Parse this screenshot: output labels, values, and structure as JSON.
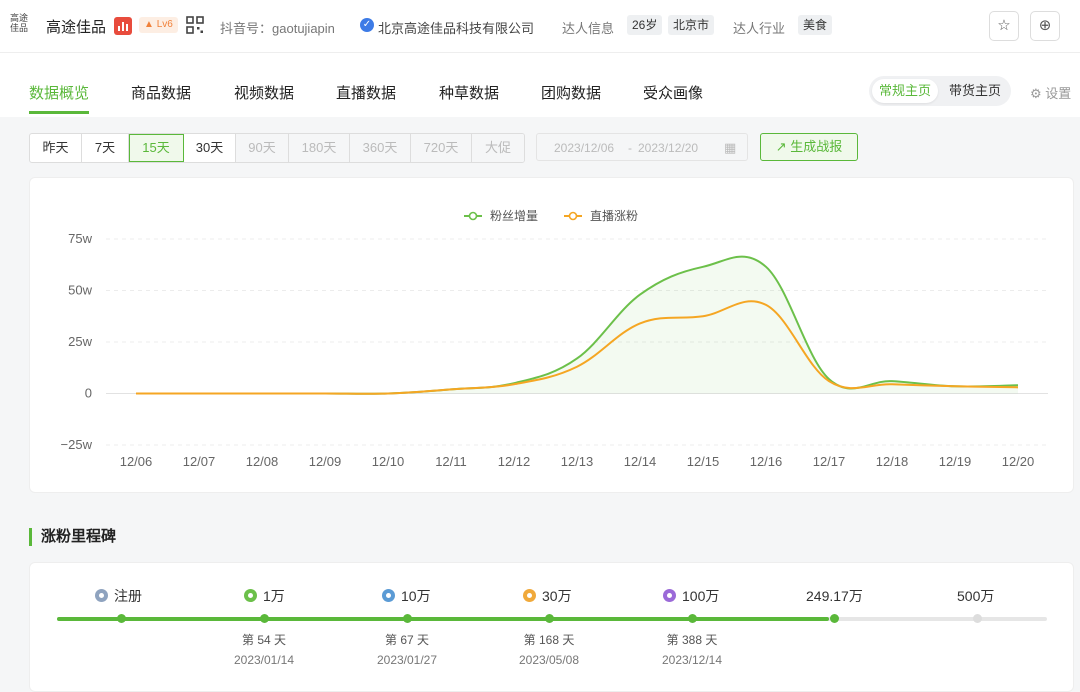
{
  "header": {
    "logo_text": "高途佳品",
    "account_name": "高途佳品",
    "level": "Lv6",
    "douyin_id_label": "抖音号：",
    "douyin_id": "gaotujiapin",
    "company": "北京高途佳品科技有限公司",
    "info_label": "达人信息",
    "age": "26岁",
    "city": "北京市",
    "industry_label": "达人行业",
    "industry": "美食"
  },
  "nav": {
    "tabs": [
      "数据概览",
      "商品数据",
      "视频数据",
      "直播数据",
      "种草数据",
      "团购数据",
      "受众画像"
    ],
    "active_tab": "数据概览",
    "toggle_on": "常规主页",
    "toggle_off": "带货主页",
    "settings": "设置"
  },
  "filters": {
    "ranges": [
      "昨天",
      "7天",
      "15天",
      "30天",
      "90天",
      "180天",
      "360天",
      "720天",
      "大促"
    ],
    "active_range": "15天",
    "date_start": "2023/12/06",
    "date_end": "2023/12/20",
    "date_sep": "-",
    "generate_report": "生成战报"
  },
  "chart_data": {
    "type": "line",
    "legend_position": "top",
    "grid": true,
    "categories": [
      "12/06",
      "12/07",
      "12/08",
      "12/09",
      "12/10",
      "12/11",
      "12/12",
      "12/13",
      "12/14",
      "12/15",
      "12/16",
      "12/17",
      "12/18",
      "12/19",
      "12/20"
    ],
    "series": [
      {
        "name": "粉丝增量",
        "color": "#6cc04a",
        "fill": true,
        "values": [
          0,
          0,
          0,
          0,
          0,
          2,
          5,
          17,
          48,
          61.5,
          61.5,
          7,
          6,
          3.5,
          4
        ]
      },
      {
        "name": "直播涨粉",
        "color": "#f5a623",
        "fill": false,
        "values": [
          0,
          0,
          0,
          0,
          0,
          2,
          4.5,
          13,
          34,
          37.5,
          43,
          6,
          4.5,
          3.5,
          3
        ]
      }
    ],
    "y_ticks": [
      75,
      50,
      25,
      0,
      -25
    ],
    "y_tick_labels": [
      "75w",
      "50w",
      "25w",
      "0",
      "−25w"
    ],
    "ylim": [
      -25,
      75
    ]
  },
  "milestones": {
    "title": "涨粉里程碑",
    "progress": 0.78,
    "items": [
      {
        "label": "注册",
        "color": "#8fa3bf",
        "day": "",
        "date": ""
      },
      {
        "label": "1万",
        "color": "#6cc04a",
        "day": "第 54 天",
        "date": "2023/01/14"
      },
      {
        "label": "10万",
        "color": "#5b9bd5",
        "day": "第 67 天",
        "date": "2023/01/27"
      },
      {
        "label": "30万",
        "color": "#f0a93b",
        "day": "第 168 天",
        "date": "2023/05/08"
      },
      {
        "label": "100万",
        "color": "#9b6ad8",
        "day": "第 388 天",
        "date": "2023/12/14"
      },
      {
        "label": "249.17万",
        "color": "",
        "day": "",
        "date": ""
      },
      {
        "label": "500万",
        "color": "",
        "day": "",
        "date": ""
      }
    ]
  }
}
